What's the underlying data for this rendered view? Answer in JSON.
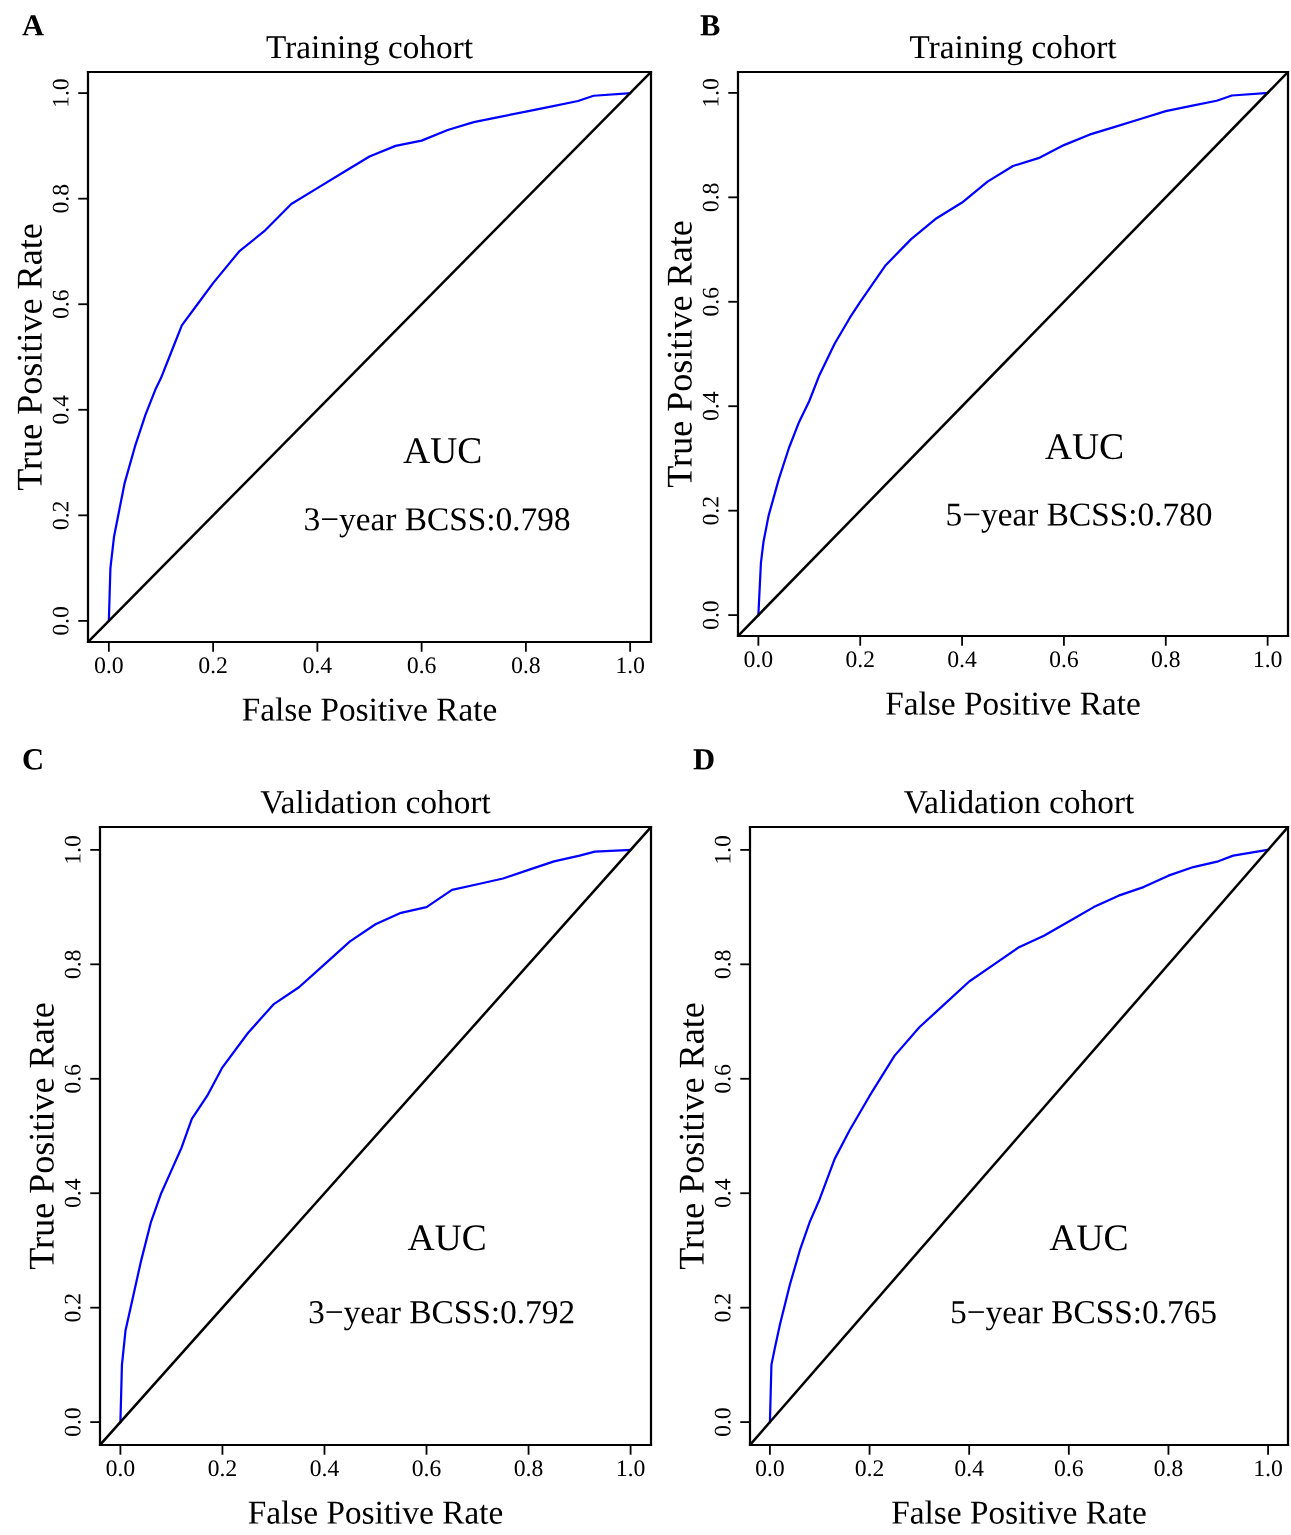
{
  "chart_data": [
    {
      "type": "line",
      "title": "Training cohort",
      "xlabel": "False Positive Rate",
      "ylabel": "True Positive Rate",
      "xlim": [
        -0.04,
        1.04
      ],
      "ylim": [
        -0.04,
        1.04
      ],
      "xticks": [
        {
          "value": 0,
          "label": "0.0"
        },
        {
          "value": 0.2,
          "label": "0.2"
        },
        {
          "value": 0.4,
          "label": "0.4"
        },
        {
          "value": 0.6,
          "label": "0.6"
        },
        {
          "value": 0.8,
          "label": "0.8"
        },
        {
          "value": 1,
          "label": "1.0"
        }
      ],
      "yticks": [
        {
          "value": 0,
          "label": "0.0"
        },
        {
          "value": 0.2,
          "label": "0.2"
        },
        {
          "value": 0.4,
          "label": "0.4"
        },
        {
          "value": 0.6,
          "label": "0.6"
        },
        {
          "value": 0.8,
          "label": "0.8"
        },
        {
          "value": 1,
          "label": "1.0"
        }
      ],
      "grid": false,
      "legend": false,
      "annotations": [
        "A",
        "AUC",
        "3−year BCSS:0.798"
      ],
      "series": [
        {
          "color": "#0000ff",
          "x": [
            0,
            0.003,
            0.01,
            0.02,
            0.03,
            0.05,
            0.07,
            0.09,
            0.1,
            0.12,
            0.14,
            0.17,
            0.2,
            0.25,
            0.3,
            0.35,
            0.4,
            0.45,
            0.5,
            0.55,
            0.6,
            0.65,
            0.7,
            0.75,
            0.8,
            0.85,
            0.9,
            0.93,
            1
          ],
          "values": [
            0,
            0.1,
            0.16,
            0.21,
            0.26,
            0.33,
            0.39,
            0.44,
            0.46,
            0.51,
            0.56,
            0.6,
            0.64,
            0.7,
            0.74,
            0.79,
            0.82,
            0.85,
            0.88,
            0.9,
            0.91,
            0.93,
            0.945,
            0.955,
            0.965,
            0.975,
            0.985,
            0.995,
            1
          ]
        },
        {
          "color": "#000000",
          "x": [
            -0.04,
            1.04
          ],
          "values": [
            -0.04,
            1.04
          ]
        }
      ]
    },
    {
      "type": "line",
      "title": "Training cohort",
      "xlabel": "False Positive Rate",
      "ylabel": "True Positive Rate",
      "xlim": [
        -0.04,
        1.04
      ],
      "ylim": [
        -0.04,
        1.04
      ],
      "xticks": [
        {
          "value": 0,
          "label": "0.0"
        },
        {
          "value": 0.2,
          "label": "0.2"
        },
        {
          "value": 0.4,
          "label": "0.4"
        },
        {
          "value": 0.6,
          "label": "0.6"
        },
        {
          "value": 0.8,
          "label": "0.8"
        },
        {
          "value": 1,
          "label": "1.0"
        }
      ],
      "yticks": [
        {
          "value": 0,
          "label": "0.0"
        },
        {
          "value": 0.2,
          "label": "0.2"
        },
        {
          "value": 0.4,
          "label": "0.4"
        },
        {
          "value": 0.6,
          "label": "0.6"
        },
        {
          "value": 0.8,
          "label": "0.8"
        },
        {
          "value": 1,
          "label": "1.0"
        }
      ],
      "grid": false,
      "legend": false,
      "annotations": [
        "B",
        "AUC",
        "5−year BCSS:0.780"
      ],
      "series": [
        {
          "color": "#0000ff",
          "x": [
            0,
            0.005,
            0.01,
            0.02,
            0.04,
            0.06,
            0.08,
            0.1,
            0.12,
            0.15,
            0.18,
            0.2,
            0.25,
            0.3,
            0.35,
            0.4,
            0.45,
            0.5,
            0.55,
            0.6,
            0.65,
            0.7,
            0.75,
            0.8,
            0.85,
            0.9,
            0.93,
            1
          ],
          "values": [
            0,
            0.1,
            0.14,
            0.19,
            0.26,
            0.32,
            0.37,
            0.41,
            0.46,
            0.52,
            0.57,
            0.6,
            0.67,
            0.72,
            0.76,
            0.79,
            0.83,
            0.86,
            0.875,
            0.9,
            0.92,
            0.935,
            0.95,
            0.965,
            0.975,
            0.985,
            0.995,
            1
          ]
        },
        {
          "color": "#000000",
          "x": [
            -0.04,
            1.04
          ],
          "values": [
            -0.04,
            1.04
          ]
        }
      ]
    },
    {
      "type": "line",
      "title": "Validation cohort",
      "xlabel": "False Positive Rate",
      "ylabel": "True Positive Rate",
      "xlim": [
        -0.04,
        1.04
      ],
      "ylim": [
        -0.04,
        1.04
      ],
      "xticks": [
        {
          "value": 0,
          "label": "0.0"
        },
        {
          "value": 0.2,
          "label": "0.2"
        },
        {
          "value": 0.4,
          "label": "0.4"
        },
        {
          "value": 0.6,
          "label": "0.6"
        },
        {
          "value": 0.8,
          "label": "0.8"
        },
        {
          "value": 1,
          "label": "1.0"
        }
      ],
      "yticks": [
        {
          "value": 0,
          "label": "0.0"
        },
        {
          "value": 0.2,
          "label": "0.2"
        },
        {
          "value": 0.4,
          "label": "0.4"
        },
        {
          "value": 0.6,
          "label": "0.6"
        },
        {
          "value": 0.8,
          "label": "0.8"
        },
        {
          "value": 1,
          "label": "1.0"
        }
      ],
      "grid": false,
      "legend": false,
      "annotations": [
        "C",
        "AUC",
        "3−year BCSS:0.792"
      ],
      "series": [
        {
          "color": "#0000ff",
          "x": [
            0,
            0.003,
            0.01,
            0.02,
            0.04,
            0.06,
            0.08,
            0.1,
            0.12,
            0.14,
            0.17,
            0.2,
            0.25,
            0.3,
            0.35,
            0.4,
            0.45,
            0.5,
            0.55,
            0.6,
            0.65,
            0.7,
            0.75,
            0.8,
            0.85,
            0.9,
            0.93,
            1
          ],
          "values": [
            0,
            0.1,
            0.16,
            0.2,
            0.28,
            0.35,
            0.4,
            0.44,
            0.48,
            0.53,
            0.57,
            0.62,
            0.68,
            0.73,
            0.76,
            0.8,
            0.84,
            0.87,
            0.89,
            0.9,
            0.93,
            0.94,
            0.95,
            0.965,
            0.98,
            0.99,
            0.997,
            1
          ]
        },
        {
          "color": "#000000",
          "x": [
            -0.04,
            1.04
          ],
          "values": [
            -0.04,
            1.04
          ]
        }
      ]
    },
    {
      "type": "line",
      "title": "Validation cohort",
      "xlabel": "False Positive Rate",
      "ylabel": "True Positive Rate",
      "xlim": [
        -0.04,
        1.04
      ],
      "ylim": [
        -0.04,
        1.04
      ],
      "xticks": [
        {
          "value": 0,
          "label": "0.0"
        },
        {
          "value": 0.2,
          "label": "0.2"
        },
        {
          "value": 0.4,
          "label": "0.4"
        },
        {
          "value": 0.6,
          "label": "0.6"
        },
        {
          "value": 0.8,
          "label": "0.8"
        },
        {
          "value": 1,
          "label": "1.0"
        }
      ],
      "yticks": [
        {
          "value": 0,
          "label": "0.0"
        },
        {
          "value": 0.2,
          "label": "0.2"
        },
        {
          "value": 0.4,
          "label": "0.4"
        },
        {
          "value": 0.6,
          "label": "0.6"
        },
        {
          "value": 0.8,
          "label": "0.8"
        },
        {
          "value": 1,
          "label": "1.0"
        }
      ],
      "grid": false,
      "legend": false,
      "annotations": [
        "D",
        "AUC",
        "5−year BCSS:0.765"
      ],
      "series": [
        {
          "color": "#0000ff",
          "x": [
            0,
            0.003,
            0.01,
            0.02,
            0.04,
            0.06,
            0.08,
            0.1,
            0.13,
            0.16,
            0.2,
            0.25,
            0.3,
            0.35,
            0.4,
            0.45,
            0.5,
            0.55,
            0.6,
            0.65,
            0.7,
            0.75,
            0.8,
            0.85,
            0.9,
            0.93,
            1
          ],
          "values": [
            0,
            0.1,
            0.13,
            0.17,
            0.24,
            0.3,
            0.35,
            0.39,
            0.46,
            0.51,
            0.57,
            0.64,
            0.69,
            0.73,
            0.77,
            0.8,
            0.83,
            0.85,
            0.875,
            0.9,
            0.92,
            0.935,
            0.955,
            0.97,
            0.98,
            0.99,
            1
          ]
        },
        {
          "color": "#000000",
          "x": [
            -0.04,
            1.04
          ],
          "values": [
            -0.04,
            1.04
          ]
        }
      ]
    }
  ]
}
